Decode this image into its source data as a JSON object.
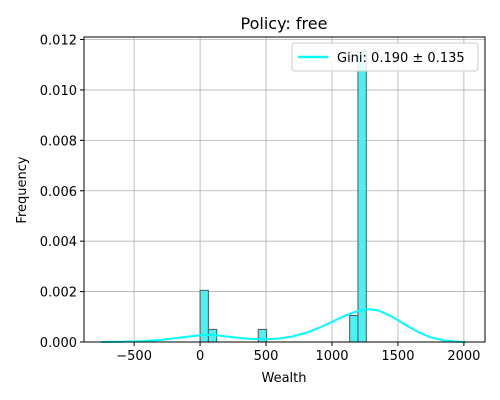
{
  "chart_data": {
    "type": "bar",
    "title": "Policy: free",
    "xlabel": "Wealth",
    "ylabel": "Frequency",
    "xlim": [
      -880,
      2160
    ],
    "ylim": [
      0,
      0.0121
    ],
    "xticks": [
      -500,
      0,
      500,
      1000,
      1500,
      2000
    ],
    "xtick_labels": [
      "−500",
      "0",
      "500",
      "1000",
      "1500",
      "2000"
    ],
    "yticks": [
      0,
      0.002,
      0.004,
      0.006,
      0.008,
      0.01,
      0.012
    ],
    "ytick_labels": [
      "0.000",
      "0.002",
      "0.004",
      "0.006",
      "0.008",
      "0.010",
      "0.012"
    ],
    "grid": true,
    "legend": {
      "position": "top-right",
      "label": "Gini: 0.190 ± 0.135"
    },
    "colors": {
      "bar_fill": "#3ff2f2",
      "bar_edge": "#555555",
      "line": "#00ffff",
      "grid": "#b0b0b0"
    },
    "histogram": {
      "bins": [
        {
          "x0": 0,
          "x1": 63,
          "value": 0.00205
        },
        {
          "x0": 63,
          "x1": 126,
          "value": 0.0005
        },
        {
          "x0": 441,
          "x1": 504,
          "value": 0.0005
        },
        {
          "x0": 1134,
          "x1": 1197,
          "value": 0.00105
        },
        {
          "x0": 1197,
          "x1": 1260,
          "value": 0.0115
        }
      ]
    },
    "kde": {
      "x": [
        -750,
        -600,
        -450,
        -300,
        -150,
        0,
        50,
        100,
        200,
        300,
        400,
        500,
        600,
        700,
        800,
        900,
        1000,
        1100,
        1200,
        1280,
        1350,
        1450,
        1550,
        1650,
        1750,
        1850,
        1950,
        2010
      ],
      "y": [
        0.0,
        1e-05,
        3e-05,
        8e-05,
        0.00018,
        0.00027,
        0.00029,
        0.00028,
        0.00022,
        0.00016,
        0.00012,
        0.00011,
        0.00014,
        0.00022,
        0.00036,
        0.00056,
        0.0008,
        0.00105,
        0.00124,
        0.0013,
        0.00125,
        0.00102,
        0.0007,
        0.0004,
        0.00018,
        6e-05,
        1e-05,
        0.0
      ]
    }
  }
}
